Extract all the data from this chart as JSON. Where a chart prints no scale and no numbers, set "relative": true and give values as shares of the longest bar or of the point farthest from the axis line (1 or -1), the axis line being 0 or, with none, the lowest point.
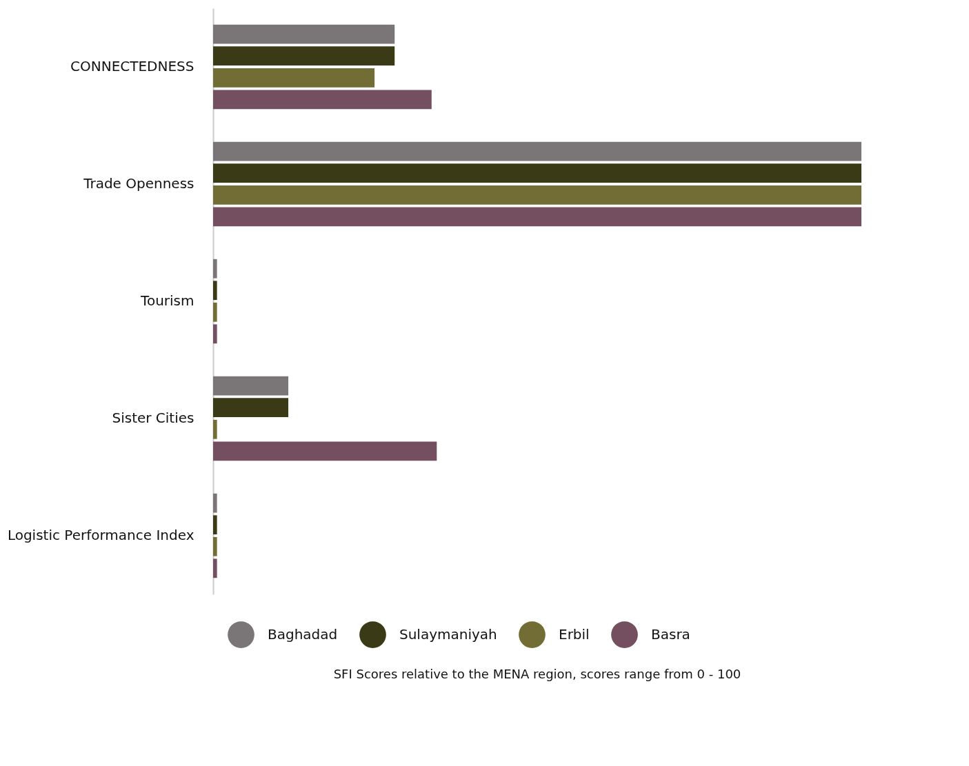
{
  "chart_data": {
    "type": "bar",
    "orientation": "horizontal",
    "relative": true,
    "categories": [
      "CONNECTEDNESS",
      "Trade Openness",
      "Tourism",
      "Sister Cities",
      "Logistic Performance Index"
    ],
    "series": [
      {
        "name": "Baghadad",
        "color": "#7a7677",
        "values": [
          0.28,
          1,
          0.006,
          0.116,
          0.006
        ]
      },
      {
        "name": "Sulaymaniyah",
        "color": "#3a3a17",
        "values": [
          0.28,
          1,
          0.006,
          0.116,
          0.006
        ]
      },
      {
        "name": "Erbil",
        "color": "#726d35",
        "values": [
          0.249,
          1,
          0.006,
          0.006,
          0.006
        ]
      },
      {
        "name": "Basra",
        "color": "#744f5f",
        "values": [
          0.337,
          1,
          0.006,
          0.345,
          0.006
        ]
      }
    ],
    "legend": "bottom",
    "annotations": [
      "SFI Scores relative to the MENA region, scores range from 0 - 100"
    ]
  }
}
